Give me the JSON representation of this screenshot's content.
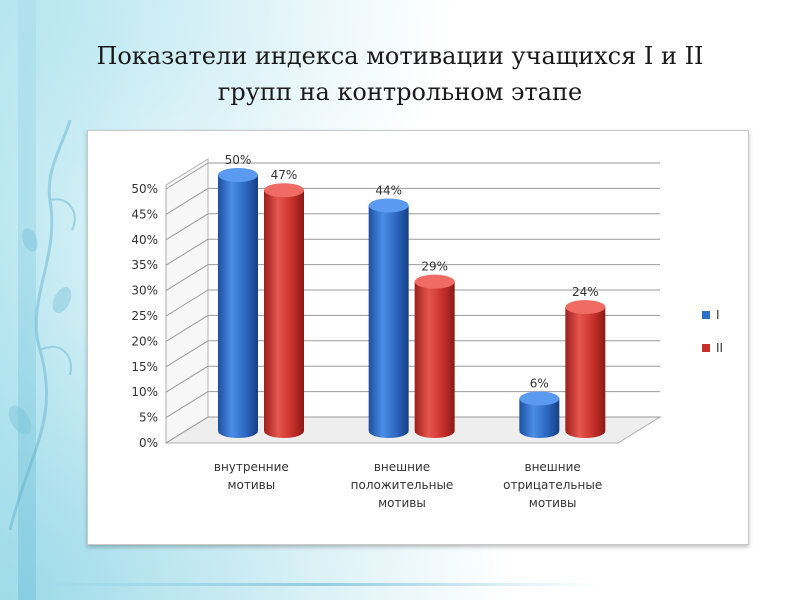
{
  "slide": {
    "title_line1": "Показатели индекса мотивации учащихся I и II",
    "title_line2": "групп на контрольном этапе"
  },
  "chart_data": {
    "type": "bar",
    "style": "3d-cylinder",
    "categories": [
      [
        "внутренние",
        "мотивы"
      ],
      [
        "внешние",
        "положительные",
        "мотивы"
      ],
      [
        "внешние",
        "отрицательные",
        "мотивы"
      ]
    ],
    "series": [
      {
        "name": "I",
        "color": "#2f6ec6",
        "values": [
          50,
          44,
          6
        ],
        "labels": [
          "50%",
          "44%",
          "6%"
        ]
      },
      {
        "name": "II",
        "color": "#c9302c",
        "values": [
          47,
          29,
          24
        ],
        "labels": [
          "47%",
          "29%",
          "24%"
        ]
      }
    ],
    "y_ticks": [
      "0%",
      "5%",
      "10%",
      "15%",
      "20%",
      "25%",
      "30%",
      "35%",
      "40%",
      "45%",
      "50%"
    ],
    "ylim": [
      0,
      50
    ],
    "grid": true,
    "legend": "right"
  }
}
